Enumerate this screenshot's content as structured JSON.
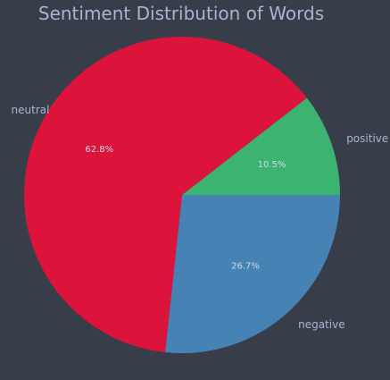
{
  "chart_data": {
    "type": "pie",
    "title": "Sentiment Distribution of Words",
    "start_angle_deg": 0,
    "direction": "counterclockwise",
    "slices": [
      {
        "label": "positive",
        "value": 10.5,
        "pct_label": "10.5%",
        "color": "#3cb371"
      },
      {
        "label": "neutral",
        "value": 62.8,
        "pct_label": "62.8%",
        "color": "#dc143c"
      },
      {
        "label": "negative",
        "value": 26.7,
        "pct_label": "26.7%",
        "color": "#4682b4"
      }
    ]
  },
  "colors": {
    "background": "#373d49",
    "text": "#a9b5cf",
    "pct_text": "#d4dae8"
  }
}
